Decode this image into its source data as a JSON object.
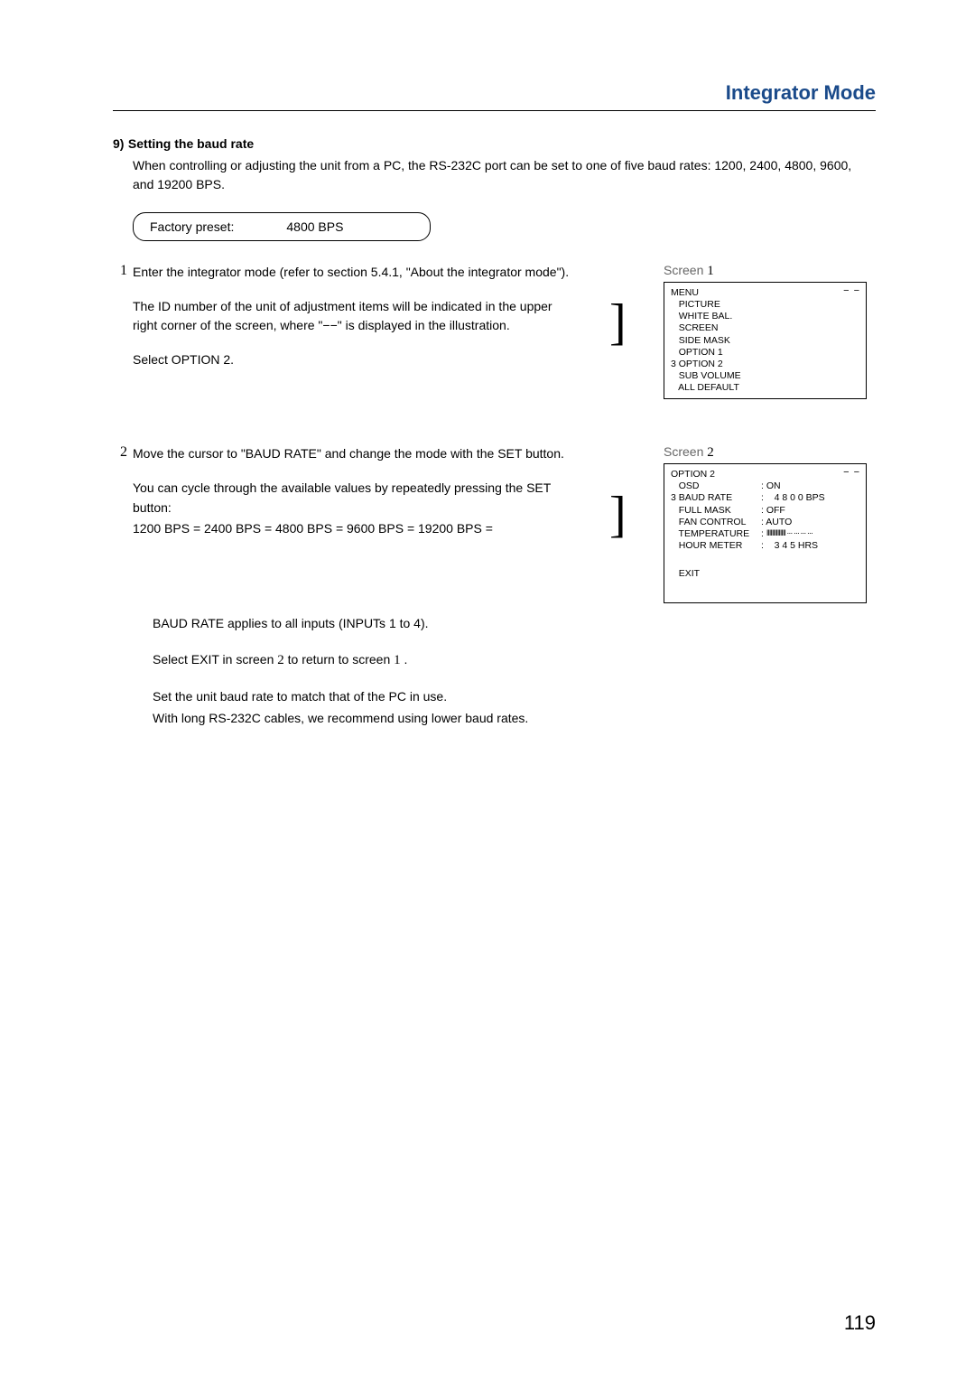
{
  "header": {
    "title": "Integrator Mode"
  },
  "section": {
    "number": "9)",
    "title": "Setting the baud rate",
    "intro": "When controlling or adjusting the unit from a PC, the RS-232C port can be set to one of five baud rates: 1200, 2400, 4800, 9600, and 19200 BPS."
  },
  "preset": {
    "label": "Factory preset:",
    "value": "4800 BPS"
  },
  "step1": {
    "num": "1",
    "p1": "Enter the integrator mode (refer to section 5.4.1, \"About the integrator mode\").",
    "p2": "The ID number of the unit of adjustment items will be indicated in the upper right corner of the screen, where \"−−\" is displayed in the illustration.",
    "p3": "Select OPTION 2."
  },
  "bracket": "]",
  "screen1": {
    "label": "Screen",
    "num": "1",
    "corner": "− −",
    "lines": [
      "MENU",
      "   PICTURE",
      "   WHITE BAL.",
      "   SCREEN",
      "   SIDE MASK",
      "   OPTION 1",
      "3 OPTION 2",
      "   SUB VOLUME",
      "   ALL DEFAULT"
    ]
  },
  "step2": {
    "num": "2",
    "p1": "Move the cursor to \"BAUD RATE\" and change the mode with the SET button.",
    "p2": "You can cycle through the available values by repeatedly pressing the SET button:",
    "p3": "1200 BPS  =   2400 BPS  =   4800 BPS  =   9600 BPS  =  19200 BPS  ="
  },
  "screen2": {
    "label": "Screen",
    "num": "2",
    "corner": "− −",
    "title_line": "OPTION 2",
    "rows": [
      {
        "label": "   OSD",
        "value": ": ON"
      },
      {
        "label": "3 BAUD RATE",
        "value": ":    4 8 0 0 BPS"
      },
      {
        "label": "   FULL MASK",
        "value": ": OFF"
      },
      {
        "label": "   FAN CONTROL",
        "value": ": AUTO"
      },
      {
        "label": "   TEMPERATURE",
        "value": ": ",
        "bars": "IIIIIIIIIIIIII ··· ··· ··· ···"
      },
      {
        "label": "   HOUR METER",
        "value": ":    3 4 5 HRS"
      }
    ],
    "exit": "   EXIT"
  },
  "follow": {
    "p1": "BAUD RATE applies to all inputs (INPUTs 1 to 4).",
    "p2a": "Select EXIT in screen ",
    "p2n1": "2",
    "p2b": " to return to screen ",
    "p2n2": "1",
    "p2c": " .",
    "p3": "Set the unit baud rate to match that of the PC in use.",
    "p4": "With long RS-232C cables, we recommend using lower baud rates."
  },
  "page_number": "119"
}
